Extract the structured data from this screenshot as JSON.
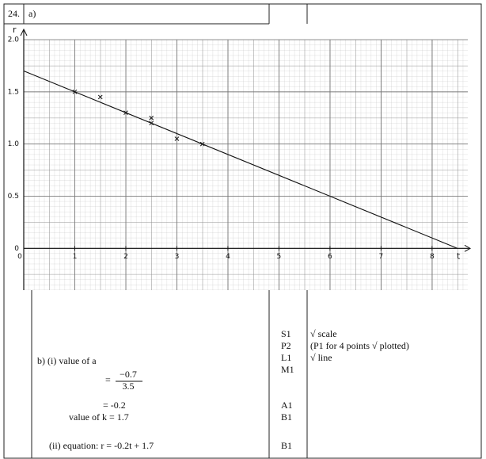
{
  "header": {
    "number": "24.",
    "part": "a)"
  },
  "chart_data": {
    "type": "scatter",
    "x_label": "t",
    "y_label": "r",
    "xlim": [
      0,
      8.7
    ],
    "ylim": [
      -0.4,
      2.0
    ],
    "xticks": [
      0,
      1,
      2,
      3,
      4,
      5,
      6,
      7,
      8
    ],
    "yticks": [
      0,
      0.5,
      {
        "value": 1,
        "label": "1.0"
      },
      1.5,
      {
        "value": 2,
        "label": "2.0"
      }
    ],
    "x": [
      1,
      1.5,
      2,
      2.5,
      2.5,
      3,
      3.5
    ],
    "values": [
      1.5,
      1.45,
      1.3,
      1.25,
      1.2,
      1.05,
      1.0
    ],
    "line": {
      "x": [
        0,
        8.5
      ],
      "values": [
        1.7,
        0
      ]
    },
    "grid": true
  },
  "working": {
    "intro": "b)  (i)  value of a",
    "eq1": "=",
    "numerator": "−0.7",
    "denominator": "3.5",
    "step2": "=  -0.2",
    "k": "value of k  =  1.7",
    "ii": "(ii)  equation: r =  -0.2t + 1.7"
  },
  "marks": [
    {
      "code": "S1",
      "note": "√ scale"
    },
    {
      "code": "P2",
      "note": "(P1 for 4 points √ plotted)"
    },
    {
      "code": "L1",
      "note": "√ line"
    },
    {
      "code": "M1"
    },
    {
      "code": "A1"
    },
    {
      "code": "B1"
    },
    {
      "code": "B1"
    }
  ]
}
